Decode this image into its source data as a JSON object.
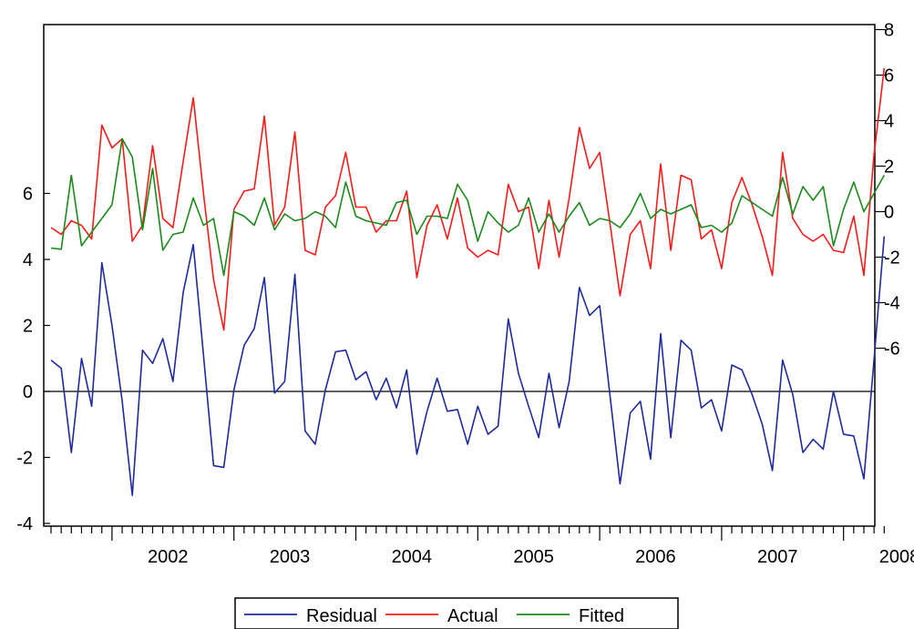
{
  "chart_data": {
    "type": "line",
    "x_start": "2001-07",
    "frequency": "monthly",
    "x_tick_labels": [
      "2002",
      "2003",
      "2004",
      "2005",
      "2006",
      "2007",
      "2008"
    ],
    "left_axis": {
      "ylim": [
        -4,
        8
      ],
      "tick_labels": [
        "-4",
        "-2",
        "0",
        "2",
        "4",
        "6"
      ],
      "tick_values": [
        -4,
        -2,
        0,
        2,
        4,
        6
      ]
    },
    "right_axis": {
      "ylim": [
        -8,
        8
      ],
      "tick_labels": [
        "-6",
        "-4",
        "-2",
        "0",
        "2",
        "4",
        "6",
        "8"
      ],
      "tick_values": [
        -6,
        -4,
        -2,
        0,
        2,
        4,
        6,
        8
      ]
    },
    "legend_position": "bottom-center",
    "series": [
      {
        "name": "Residual",
        "axis": "left",
        "color": "#1f2a9e",
        "values": [
          0.95,
          0.7,
          -1.85,
          1.0,
          -0.45,
          3.9,
          2.0,
          -0.3,
          -3.15,
          1.25,
          0.85,
          1.6,
          0.3,
          3.0,
          4.45,
          1.1,
          -2.25,
          -2.3,
          0.05,
          1.4,
          1.9,
          3.45,
          -0.05,
          0.3,
          3.55,
          -1.2,
          -1.6,
          0.05,
          1.2,
          1.25,
          0.35,
          0.6,
          -0.25,
          0.4,
          -0.5,
          0.65,
          -1.9,
          -0.6,
          0.4,
          -0.6,
          -0.55,
          -1.6,
          -0.45,
          -1.3,
          -1.05,
          2.2,
          0.55,
          -0.45,
          -1.4,
          0.55,
          -1.1,
          0.3,
          3.15,
          2.3,
          2.6,
          -0.1,
          -2.8,
          -0.65,
          -0.3,
          -2.05,
          1.75,
          -1.4,
          1.55,
          1.25,
          -0.5,
          -0.25,
          -1.2,
          0.8,
          0.65,
          -0.1,
          -1.0,
          -2.4,
          0.95,
          -0.1,
          -1.85,
          -1.45,
          -1.75,
          0.0,
          -1.3,
          -1.35,
          -2.65,
          0.95,
          4.7
        ]
      },
      {
        "name": "Actual",
        "axis": "right",
        "color": "#ff1a1a",
        "values": [
          -0.7,
          -1.0,
          -0.4,
          -0.6,
          -1.2,
          3.8,
          2.8,
          3.2,
          -1.3,
          -0.6,
          2.9,
          -0.3,
          -0.7,
          2.2,
          5.0,
          0.8,
          -3.0,
          -5.2,
          0.1,
          0.9,
          1.0,
          4.2,
          -0.6,
          0.2,
          3.5,
          -1.7,
          -1.9,
          0.2,
          0.7,
          2.6,
          0.2,
          0.2,
          -0.9,
          -0.4,
          -0.4,
          0.9,
          -2.9,
          -0.6,
          0.3,
          -1.2,
          0.6,
          -1.6,
          -2.0,
          -1.7,
          -1.9,
          1.2,
          0.0,
          0.2,
          -2.5,
          0.5,
          -2.0,
          0.6,
          3.7,
          1.9,
          2.6,
          -0.5,
          -3.7,
          -1.0,
          -0.4,
          -2.5,
          2.1,
          -1.7,
          1.6,
          1.4,
          -1.2,
          -0.8,
          -2.5,
          0.4,
          1.5,
          0.3,
          -1.1,
          -2.8,
          2.6,
          -0.3,
          -1.0,
          -1.3,
          -1.0,
          -1.7,
          -1.8,
          -0.2,
          -2.8,
          2.5,
          6.3
        ]
      },
      {
        "name": "Fitted",
        "axis": "right",
        "color": "#1a8a1a",
        "values": [
          -1.6,
          -1.65,
          1.6,
          -1.5,
          -0.9,
          -0.3,
          0.3,
          3.2,
          2.4,
          -0.8,
          1.9,
          -1.7,
          -1.0,
          -0.9,
          0.6,
          -0.6,
          -0.3,
          -2.8,
          0.0,
          -0.2,
          -0.6,
          0.6,
          -0.8,
          -0.1,
          -0.4,
          -0.3,
          0.0,
          -0.2,
          -0.7,
          1.3,
          -0.2,
          -0.4,
          -0.5,
          -0.6,
          0.4,
          0.5,
          -1.0,
          -0.2,
          -0.2,
          -0.3,
          1.2,
          0.5,
          -1.3,
          -0.0,
          -0.5,
          -0.9,
          -0.6,
          0.6,
          -0.9,
          -0.1,
          -0.9,
          -0.2,
          0.4,
          -0.6,
          -0.3,
          -0.4,
          -0.7,
          -0.1,
          0.8,
          -0.3,
          0.1,
          -0.1,
          0.1,
          0.3,
          -0.7,
          -0.6,
          -0.9,
          -0.5,
          0.7,
          0.4,
          0.1,
          -0.2,
          1.5,
          -0.1,
          1.1,
          0.5,
          1.1,
          -1.5,
          0.1,
          1.3,
          0.0,
          0.8,
          1.6
        ]
      }
    ]
  }
}
